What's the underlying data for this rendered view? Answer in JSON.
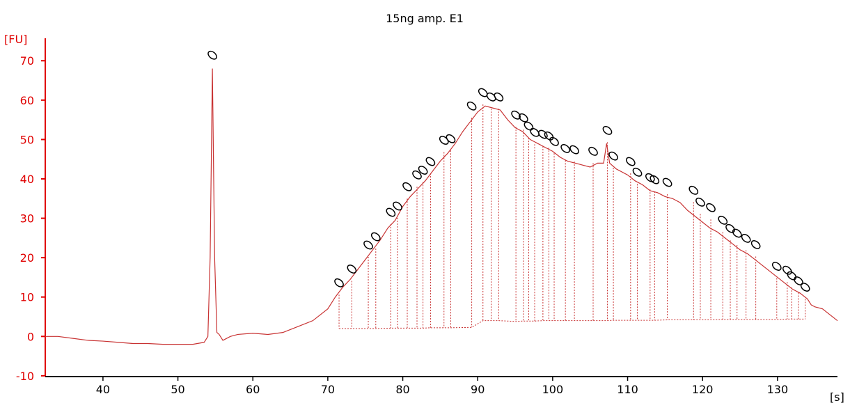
{
  "chart_data": {
    "type": "line",
    "title": "15ng amp. E1",
    "y_label": "[FU]",
    "x_label": "[s]",
    "xlim": [
      32.3,
      138
    ],
    "ylim": [
      -10.2,
      75.7
    ],
    "xticks": [
      40,
      50,
      60,
      70,
      80,
      90,
      100,
      110,
      120,
      130
    ],
    "yticks": [
      -10,
      0,
      10,
      20,
      30,
      40,
      50,
      60,
      70
    ],
    "axis_color": "#e00000",
    "series": [
      {
        "color": "#c83232",
        "x": [
          32.3,
          34,
          36,
          38,
          40,
          42,
          44,
          46,
          48,
          50,
          52,
          53.5,
          54,
          54.3,
          54.6,
          54.9,
          55.2,
          55.5,
          56,
          57,
          58,
          60,
          62,
          64,
          66,
          68,
          70,
          71,
          72,
          73,
          74,
          75,
          76,
          77,
          78,
          79,
          80,
          81,
          82,
          83,
          84,
          85,
          86,
          87,
          88,
          89,
          90,
          91,
          92,
          93,
          94,
          95,
          96,
          97,
          98,
          99,
          100,
          101,
          102,
          103,
          104,
          105,
          106,
          106.8,
          107.2,
          107.6,
          108.5,
          110,
          111,
          112,
          113,
          114,
          115,
          116,
          117,
          118,
          119,
          120,
          121,
          122,
          123,
          124,
          125,
          126,
          127,
          128,
          129,
          130,
          131,
          132,
          133,
          134,
          134.5,
          135,
          136,
          137,
          138
        ],
        "values": [
          0,
          0,
          -0.5,
          -1,
          -1.2,
          -1.5,
          -1.8,
          -1.8,
          -2,
          -2,
          -2,
          -1.5,
          0,
          20,
          68,
          20,
          1,
          0.5,
          -1,
          0,
          0.5,
          0.8,
          0.5,
          1,
          2.5,
          4,
          7,
          10,
          12.5,
          14.5,
          17,
          19.5,
          22,
          24.5,
          27.5,
          29.5,
          33,
          35.5,
          37.5,
          39.5,
          42,
          44.5,
          46.5,
          49,
          52,
          54.5,
          57,
          58.5,
          58,
          57.5,
          55,
          53,
          52,
          50,
          49,
          48,
          47,
          45.5,
          44.5,
          44,
          43.5,
          43,
          44,
          44,
          49,
          44,
          42.5,
          41,
          39.5,
          38.5,
          37,
          36.5,
          35.5,
          35,
          34,
          32,
          30.5,
          29,
          27.5,
          26.5,
          25,
          23.5,
          22,
          21,
          19.5,
          18,
          16.5,
          15,
          13.5,
          12,
          11,
          9.5,
          8,
          7.5,
          7,
          5.5,
          4
        ]
      }
    ],
    "peaks": {
      "color": "#c83232",
      "x": [
        54.6,
        71.5,
        73.2,
        75.4,
        76.4,
        78.4,
        79.3,
        80.6,
        81.9,
        82.7,
        83.7,
        85.5,
        86.4,
        89.2,
        90.7,
        91.8,
        92.8,
        95.1,
        96.1,
        96.8,
        97.6,
        98.7,
        99.5,
        100.2,
        101.7,
        102.9,
        105.4,
        107.3,
        108.1,
        110.4,
        111.3,
        113.0,
        113.6,
        115.3,
        118.8,
        119.7,
        121.1,
        122.7,
        123.7,
        124.6,
        125.8,
        127.1,
        129.9,
        131.3,
        131.9,
        132.8,
        133.7
      ],
      "values": [
        68.4,
        10.6,
        14.1,
        20.2,
        22.3,
        28.5,
        30.1,
        35.0,
        38.0,
        39.2,
        41.4,
        46.8,
        47.2,
        55.5,
        58.9,
        57.8,
        57.8,
        53.2,
        52.5,
        50.4,
        48.8,
        48.3,
        47.9,
        46.5,
        44.7,
        44.4,
        44.0,
        49.3,
        42.8,
        41.4,
        38.7,
        37.3,
        36.8,
        36.1,
        34.1,
        31.1,
        29.7,
        26.5,
        24.4,
        23.2,
        21.9,
        20.3,
        14.8,
        13.8,
        12.4,
        11.1,
        9.5
      ],
      "base": [
        null,
        2,
        2,
        2,
        2,
        2.1,
        2.1,
        2.1,
        2.1,
        2.1,
        2.2,
        2.2,
        2.2,
        2.3,
        4,
        4,
        4,
        3.8,
        3.9,
        3.9,
        3.9,
        4,
        4,
        4,
        4,
        4,
        4,
        4,
        4.1,
        4.1,
        4.1,
        4.1,
        4.1,
        4.2,
        4.2,
        4.2,
        4.2,
        4.3,
        4.3,
        4.3,
        4.3,
        4.3,
        4.3,
        4.4,
        4.4,
        4.4,
        4.4
      ]
    }
  }
}
